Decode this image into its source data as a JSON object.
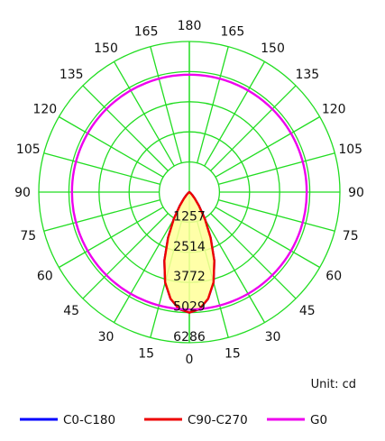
{
  "chart_data": {
    "type": "polar",
    "unit_label": "Unit: cd",
    "angle_labels": [
      "0",
      "15",
      "30",
      "45",
      "60",
      "75",
      "90",
      "105",
      "120",
      "135",
      "150",
      "165",
      "180"
    ],
    "radial_labels": [
      "1257",
      "2514",
      "3772",
      "5029",
      "6286"
    ],
    "radial_max": 6286,
    "grid": true,
    "legend_placement": "bottom",
    "series": [
      {
        "name": "C0-C180",
        "color": "#0000ff",
        "angles_deg": [
          0,
          5,
          10,
          15,
          20,
          25,
          30,
          35,
          40,
          45,
          50,
          55,
          60,
          70,
          80,
          90
        ],
        "values": [
          5030,
          4900,
          4520,
          3900,
          3050,
          2100,
          1300,
          700,
          350,
          160,
          70,
          30,
          10,
          0,
          0,
          0
        ]
      },
      {
        "name": "C90-C270",
        "color": "#ee0000",
        "angles_deg": [
          0,
          5,
          10,
          15,
          20,
          25,
          30,
          35,
          40,
          45,
          50,
          55,
          60,
          70,
          80,
          90
        ],
        "values": [
          5030,
          4900,
          4520,
          3900,
          3050,
          2100,
          1300,
          700,
          350,
          160,
          70,
          30,
          10,
          0,
          0,
          0
        ]
      },
      {
        "name": "G0",
        "color": "#ee00ee",
        "angles_deg": [
          0,
          90,
          180
        ],
        "values": [
          4900,
          4900,
          4900
        ]
      }
    ]
  }
}
